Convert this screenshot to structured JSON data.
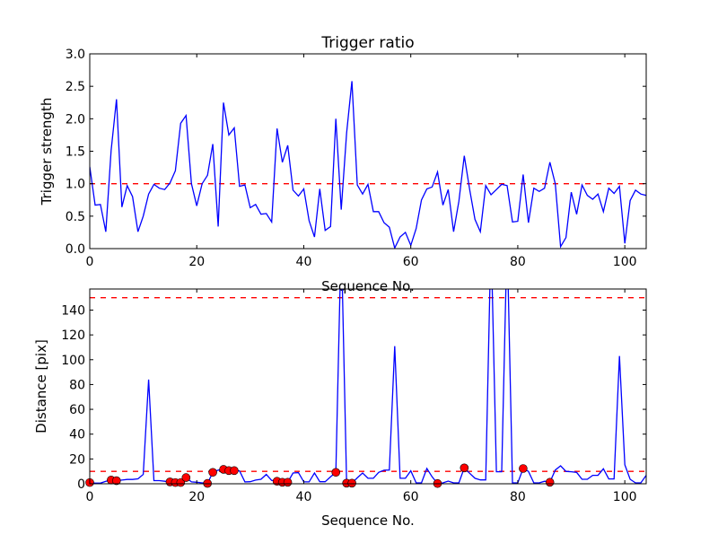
{
  "chart_data": [
    {
      "type": "line",
      "title": "Trigger ratio",
      "xlabel": "Sequence No.",
      "ylabel": "Trigger strength",
      "xlim": [
        0,
        104
      ],
      "ylim": [
        0,
        3.0
      ],
      "xticks": [
        0,
        20,
        40,
        60,
        80,
        100
      ],
      "xtick_labels": [
        "0",
        "20",
        "40",
        "60",
        "80",
        "100"
      ],
      "yticks": [
        0,
        0.5,
        1.0,
        1.5,
        2.0,
        2.5,
        3.0
      ],
      "ytick_labels": [
        "0.0",
        "0.5",
        "1.0",
        "1.5",
        "2.0",
        "2.5",
        "3.0"
      ],
      "grid": false,
      "thresholds": [
        {
          "value": 1.0,
          "color": "#ff0000",
          "style": "dashed"
        }
      ],
      "series": [
        {
          "name": "trigger strength",
          "color": "#0000ff",
          "values": [
            1.26,
            0.67,
            0.68,
            0.26,
            1.51,
            2.3,
            0.64,
            0.97,
            0.8,
            0.26,
            0.5,
            0.84,
            0.99,
            0.93,
            0.91,
            1.01,
            1.2,
            1.93,
            2.05,
            1.0,
            0.66,
            1.0,
            1.13,
            1.61,
            0.34,
            2.25,
            1.75,
            1.86,
            0.96,
            0.98,
            0.63,
            0.68,
            0.53,
            0.54,
            0.41,
            1.85,
            1.33,
            1.59,
            0.9,
            0.81,
            0.92,
            0.43,
            0.18,
            0.92,
            0.28,
            0.34,
            2.0,
            0.6,
            1.78,
            2.58,
            0.98,
            0.84,
            0.99,
            0.57,
            0.57,
            0.4,
            0.33,
            0.01,
            0.18,
            0.25,
            0.05,
            0.31,
            0.75,
            0.92,
            0.95,
            1.18,
            0.67,
            0.91,
            0.26,
            0.73,
            1.43,
            0.91,
            0.45,
            0.26,
            0.97,
            0.83,
            0.91,
            0.99,
            0.97,
            0.41,
            0.42,
            1.14,
            0.4,
            0.93,
            0.88,
            0.93,
            1.33,
            1.0,
            0.03,
            0.17,
            0.87,
            0.53,
            0.98,
            0.82,
            0.76,
            0.84,
            0.57,
            0.93,
            0.85,
            0.96,
            0.08,
            0.74,
            0.9,
            0.84,
            0.82
          ]
        }
      ]
    },
    {
      "type": "line",
      "title": "",
      "xlabel": "Sequence No.",
      "ylabel": "Distance [pix]",
      "xlim": [
        0,
        104
      ],
      "ylim": [
        0,
        157
      ],
      "xticks": [
        0,
        20,
        40,
        60,
        80,
        100
      ],
      "xtick_labels": [
        "0",
        "20",
        "40",
        "60",
        "80",
        "100"
      ],
      "yticks": [
        0,
        20,
        40,
        60,
        80,
        100,
        120,
        140
      ],
      "ytick_labels": [
        "0",
        "20",
        "40",
        "60",
        "80",
        "100",
        "120",
        "140"
      ],
      "grid": false,
      "thresholds": [
        {
          "value": 150,
          "color": "#ff0000",
          "style": "dashed"
        },
        {
          "value": 10,
          "color": "#ff0000",
          "style": "dashed"
        }
      ],
      "series": [
        {
          "name": "distance",
          "color": "#0000ff",
          "values": [
            1,
            0.5,
            0.5,
            2,
            3,
            2.5,
            3,
            3.5,
            3.5,
            4,
            7.5,
            84,
            2.5,
            2.5,
            2,
            1.5,
            1,
            1,
            5,
            1.5,
            1.2,
            0.7,
            0.3,
            9.2,
            11,
            11.6,
            10.6,
            10.6,
            10.4,
            1.5,
            1.7,
            3,
            3.6,
            7.5,
            2.7,
            2,
            1.2,
            1.2,
            8.7,
            9,
            1.5,
            1.5,
            8.7,
            1.7,
            1.7,
            5.6,
            9.2,
            200,
            0.5,
            0.5,
            4.8,
            8.7,
            4.4,
            4.4,
            9.2,
            10.9,
            11.1,
            111,
            4.4,
            4.4,
            10.4,
            0.7,
            0.7,
            12.3,
            5.6,
            0.2,
            0.7,
            2.2,
            0.7,
            0.7,
            12.8,
            8.5,
            4.4,
            3.1,
            3.1,
            200,
            9.7,
            9.7,
            200,
            0.7,
            0.7,
            12.3,
            10,
            0.7,
            0.7,
            2,
            1.2,
            11.1,
            14.5,
            10,
            9.7,
            9.2,
            3.6,
            3.6,
            6.8,
            6.8,
            12.1,
            3.9,
            3.9,
            103,
            15.3,
            3.6,
            0.7,
            0.7,
            6.8
          ]
        }
      ],
      "markers": {
        "color": "#ff0000",
        "edge_color": "#000000",
        "indices": [
          0,
          4,
          5,
          15,
          16,
          17,
          18,
          22,
          23,
          25,
          26,
          27,
          35,
          36,
          37,
          46,
          48,
          49,
          65,
          70,
          81,
          86
        ]
      }
    }
  ]
}
